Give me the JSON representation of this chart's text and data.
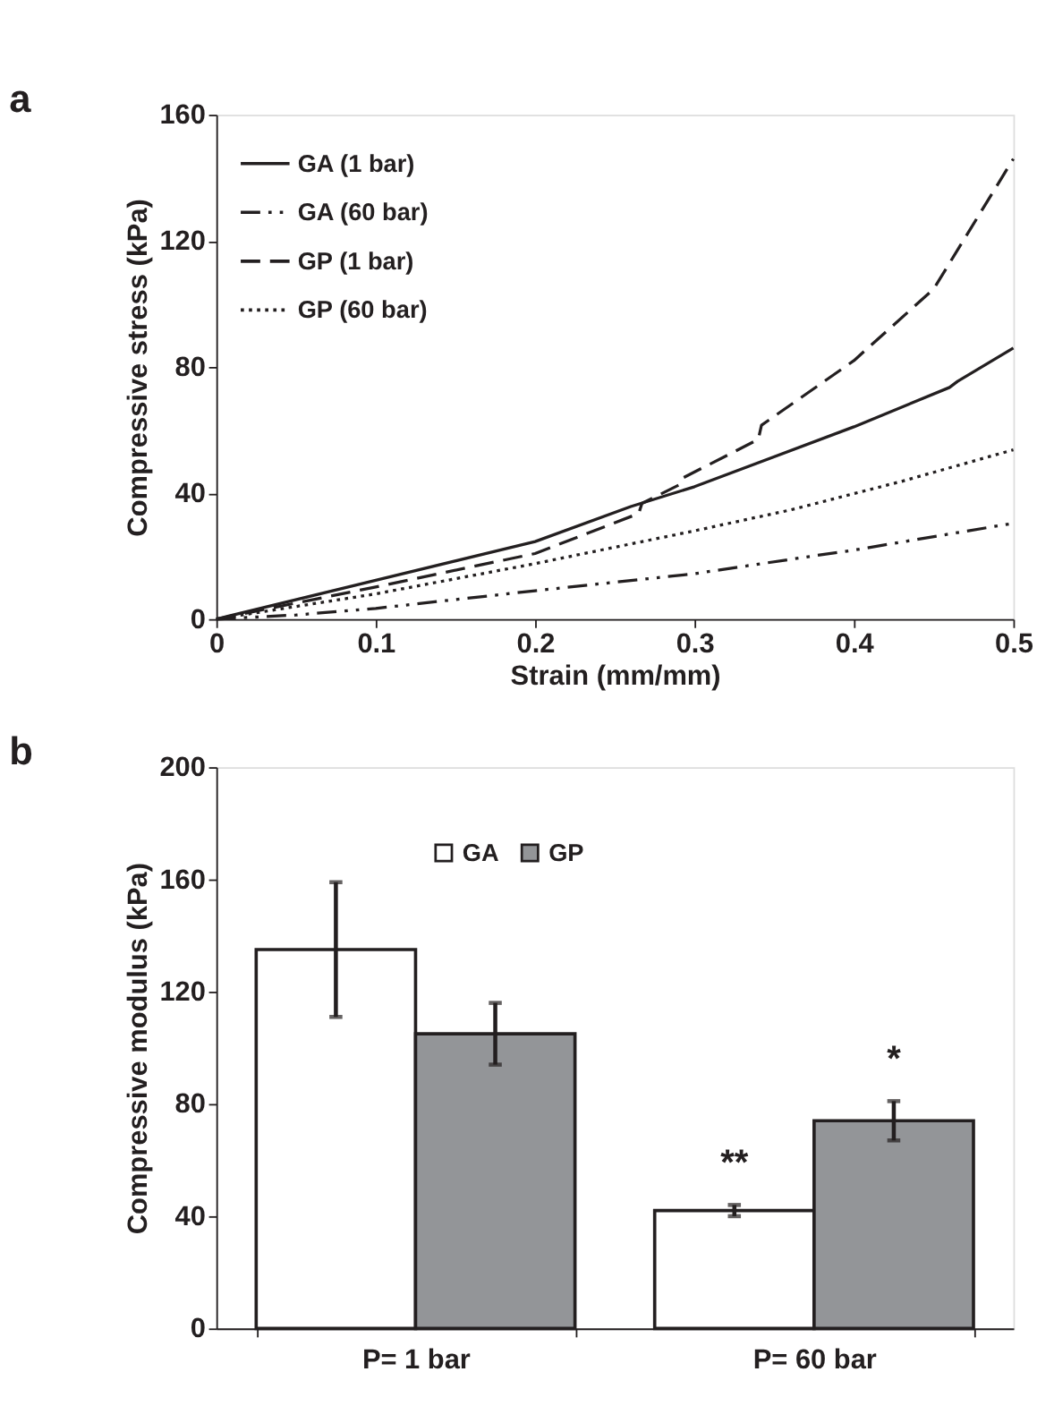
{
  "chart_data": [
    {
      "type": "line",
      "title": "a",
      "xlabel": "Strain (mm/mm)",
      "ylabel": "Compressive stress (kPa)",
      "xlim": [
        0,
        0.5
      ],
      "xticks": [
        0,
        0.1,
        0.2,
        0.3,
        0.4,
        0.5
      ],
      "ylim": [
        0,
        160
      ],
      "yticks": [
        0,
        40,
        80,
        120,
        160
      ],
      "grid": false,
      "legend": "top left",
      "marker": "none",
      "series": [
        {
          "name": "GA (1 bar)",
          "color": "#231f20",
          "line_style": "solid",
          "x": [
            0,
            0.1,
            0.2,
            0.26,
            0.3,
            0.4,
            0.46,
            0.465,
            0.5
          ],
          "values": [
            0,
            12.3,
            24.6,
            35.7,
            42,
            61,
            73.5,
            75.4,
            86
          ]
        },
        {
          "name": "GA (60 bar)",
          "color": "#231f20",
          "line_style": "dashdot",
          "x": [
            0,
            0.05,
            0.1,
            0.2,
            0.3,
            0.37,
            0.4,
            0.5
          ],
          "values": [
            0,
            1.3,
            3.4,
            9,
            14.4,
            19.7,
            21.9,
            30.4
          ]
        },
        {
          "name": "GP (1 bar)",
          "color": "#231f20",
          "line_style": "dashed",
          "x": [
            0,
            0.1,
            0.2,
            0.265,
            0.267,
            0.29,
            0.292,
            0.34,
            0.342,
            0.4,
            0.45,
            0.5
          ],
          "values": [
            0,
            10.2,
            20.8,
            33.5,
            36.7,
            42.5,
            44.6,
            57,
            61.5,
            82,
            104.7,
            146
          ]
        },
        {
          "name": "GP (60 bar)",
          "color": "#231f20",
          "line_style": "dotted",
          "x": [
            0,
            0.1,
            0.2,
            0.3,
            0.36,
            0.43,
            0.5
          ],
          "values": [
            0,
            8,
            17.6,
            28,
            34.6,
            43.7,
            53.7
          ]
        }
      ]
    },
    {
      "type": "bar",
      "title": "b",
      "ylabel": "Compressive modulus (kPa)",
      "categories": [
        "P= 1 bar",
        "P= 60 bar"
      ],
      "ylim": [
        0,
        200
      ],
      "yticks": [
        0,
        40,
        80,
        120,
        160,
        200
      ],
      "grid": false,
      "legend": "top",
      "series": [
        {
          "name": "GA",
          "color": "#ffffff",
          "values": [
            135,
            42
          ],
          "errors": [
            [
              111,
              159
            ],
            [
              40,
              44
            ]
          ]
        },
        {
          "name": "GP",
          "color": "#939598",
          "values": [
            105,
            74
          ],
          "errors": [
            [
              94,
              116
            ],
            [
              67,
              81
            ]
          ]
        }
      ],
      "annotations": [
        "**",
        "*"
      ]
    }
  ]
}
